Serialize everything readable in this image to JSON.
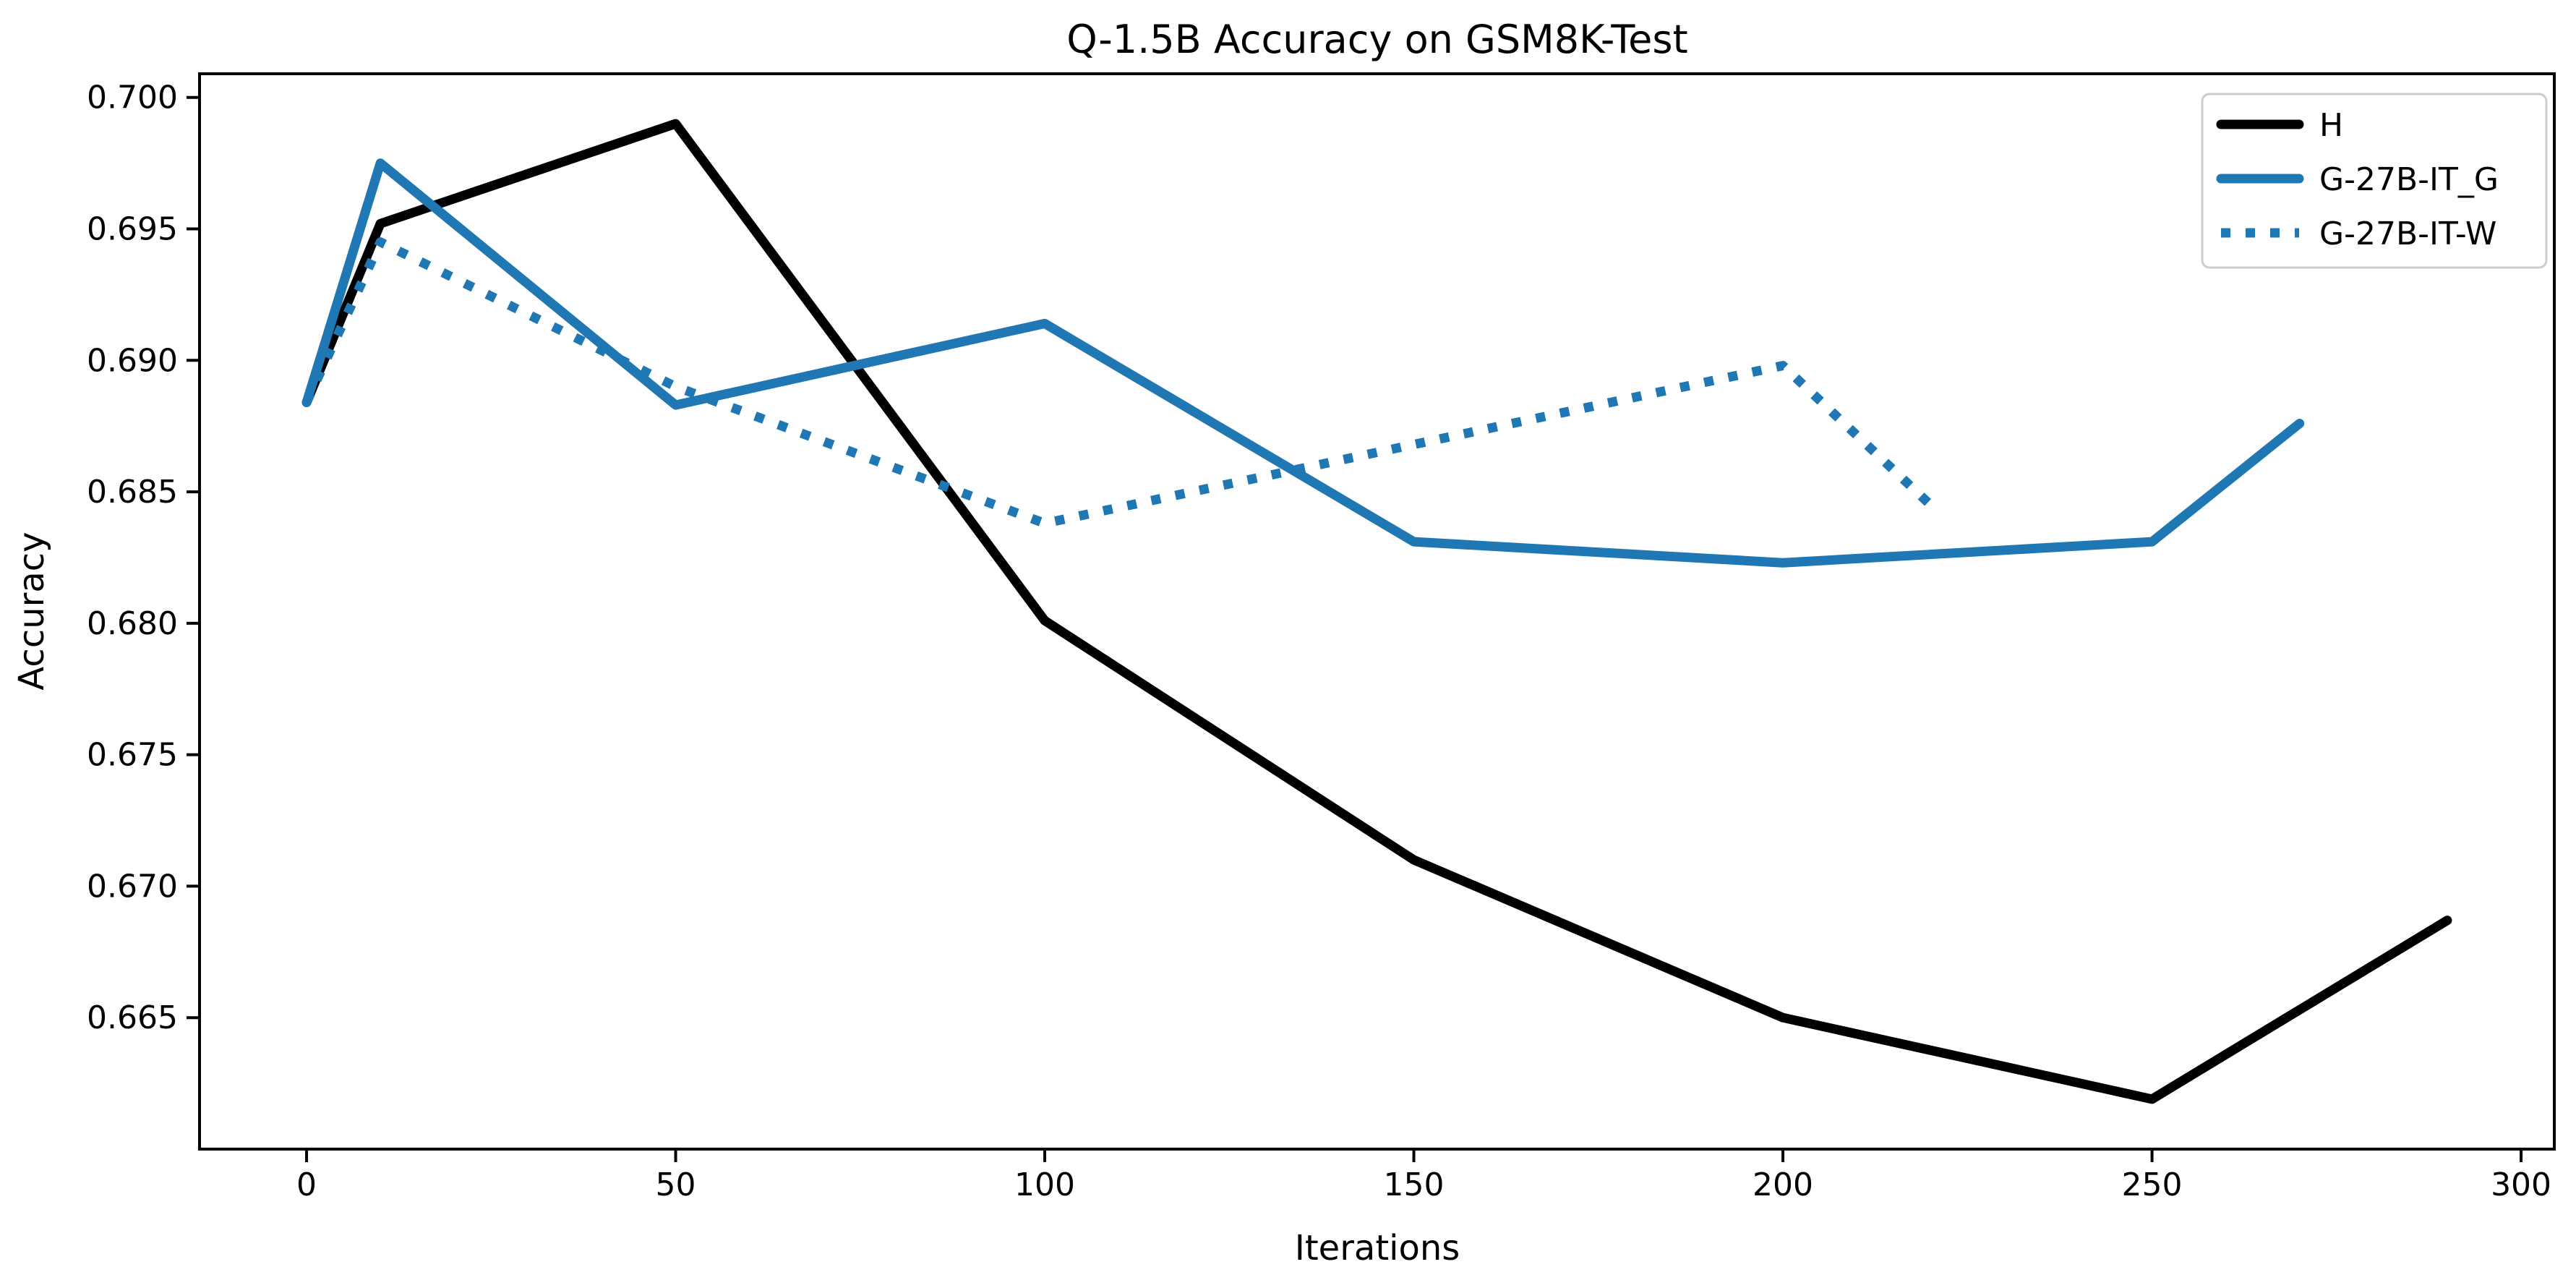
{
  "title": "Q-1.5B Accuracy on GSM8K-Test",
  "chart_data": {
    "type": "line",
    "title": "Q-1.5B Accuracy on GSM8K-Test",
    "xlabel": "Iterations",
    "ylabel": "Accuracy",
    "xlim": [
      -14.5,
      304.5
    ],
    "ylim": [
      0.66,
      0.7009
    ],
    "xticks": [
      0,
      50,
      100,
      150,
      200,
      250,
      300
    ],
    "xtick_labels": [
      "0",
      "50",
      "100",
      "150",
      "200",
      "250",
      "300"
    ],
    "yticks": [
      0.7,
      0.695,
      0.69,
      0.685,
      0.68,
      0.675,
      0.67,
      0.665
    ],
    "ytick_labels": [
      "0.700",
      "0.695",
      "0.690",
      "0.685",
      "0.680",
      "0.675",
      "0.670",
      "0.665"
    ],
    "grid": false,
    "legend_position": "upper right",
    "series": [
      {
        "name": "H",
        "color": "#000000",
        "style": "solid",
        "x": [
          0,
          10,
          50,
          100,
          150,
          200,
          250,
          290
        ],
        "y": [
          0.6884,
          0.6952,
          0.699,
          0.6801,
          0.671,
          0.665,
          0.6619,
          0.6687
        ]
      },
      {
        "name": "G-27B-IT_G",
        "color": "#1f77b4",
        "style": "solid",
        "x": [
          0,
          10,
          50,
          100,
          150,
          200,
          250,
          270
        ],
        "y": [
          0.6884,
          0.6975,
          0.6883,
          0.6914,
          0.6831,
          0.6823,
          0.6831,
          0.6876
        ]
      },
      {
        "name": "G-27B-IT-W",
        "color": "#1f77b4",
        "style": "dotted",
        "x": [
          0,
          10,
          50,
          100,
          150,
          200,
          220
        ],
        "y": [
          0.6884,
          0.6945,
          0.689,
          0.6838,
          0.6868,
          0.6898,
          0.6845
        ]
      }
    ]
  }
}
